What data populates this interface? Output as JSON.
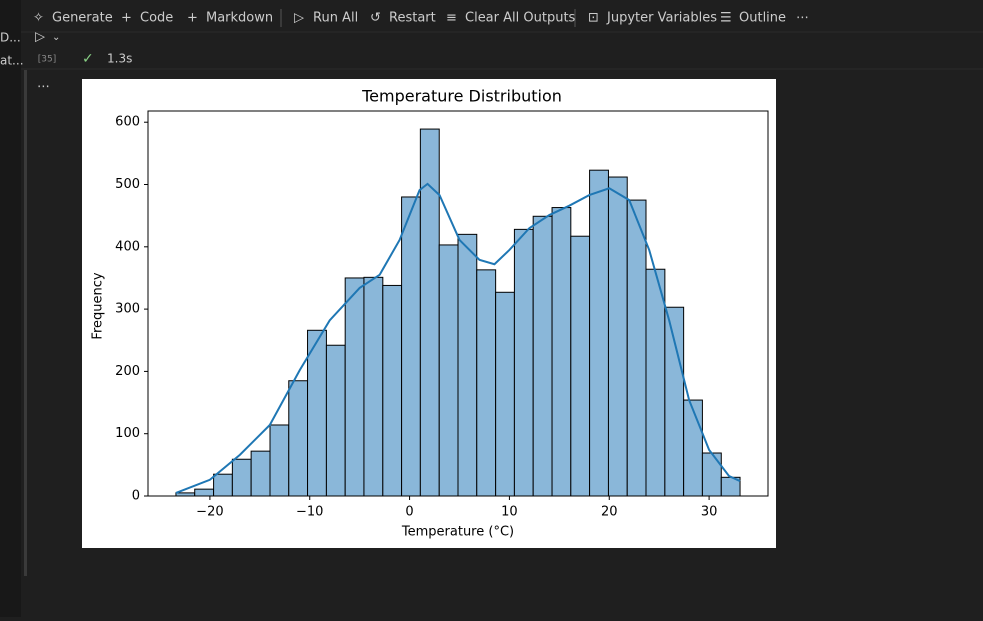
{
  "toolbar": {
    "items": [
      "Generate",
      "Code",
      "Markdown",
      "Run All",
      "Restart",
      "Clear All Outputs",
      "Jupyter Variables",
      "Outline"
    ]
  },
  "sidebar": [
    "D...",
    "at..."
  ],
  "cell": {
    "execution_count": "[35]",
    "status": "1.3s"
  },
  "chart_data": {
    "type": "histogram",
    "title": "Temperature Distribution",
    "x_label": "Temperature (°C)",
    "y_label": "Frequency",
    "bins": [
      -23.4,
      -21.52,
      -19.63,
      -17.75,
      -15.87,
      -13.98,
      -12.1,
      -10.22,
      -8.33,
      -6.45,
      -4.57,
      -2.68,
      -0.8,
      1.08,
      2.97,
      4.85,
      6.73,
      8.62,
      10.5,
      12.38,
      14.27,
      16.15,
      18.03,
      19.92,
      21.8,
      23.68,
      25.57,
      27.45,
      29.33,
      31.22,
      33.1
    ],
    "values": [
      5,
      11,
      35,
      59,
      72,
      114,
      185,
      266,
      242,
      350,
      351,
      338,
      480,
      589,
      403,
      420,
      363,
      327,
      428,
      449,
      463,
      417,
      523,
      512,
      475,
      364,
      303,
      154,
      69,
      30
    ],
    "color": "#8ab7d9",
    "edgecolor": "#000000",
    "kde": {
      "color": "#1f77b4",
      "x": [
        -23.4,
        -20,
        -17,
        -14,
        -11,
        -8,
        -5,
        -3,
        -1,
        0,
        1,
        1.8,
        3,
        5,
        7,
        8.5,
        10,
        12,
        14,
        16,
        18,
        20,
        22,
        24,
        26,
        28,
        30,
        32,
        33.1
      ],
      "values": [
        5,
        26,
        66,
        114,
        202,
        282,
        334,
        355,
        411,
        451,
        491,
        501,
        483,
        411,
        379,
        372,
        395,
        430,
        451,
        466,
        483,
        494,
        475,
        395,
        282,
        154,
        74,
        32,
        24
      ]
    },
    "xlim": [
      -26.2,
      35.9
    ],
    "ylim": [
      0,
      618
    ],
    "xticks": [
      {
        "value": -20,
        "label": "−20"
      },
      {
        "value": -10,
        "label": "−10"
      },
      0,
      10,
      20,
      30
    ],
    "yticks": [
      0,
      100,
      200,
      300,
      400,
      500,
      600
    ]
  }
}
